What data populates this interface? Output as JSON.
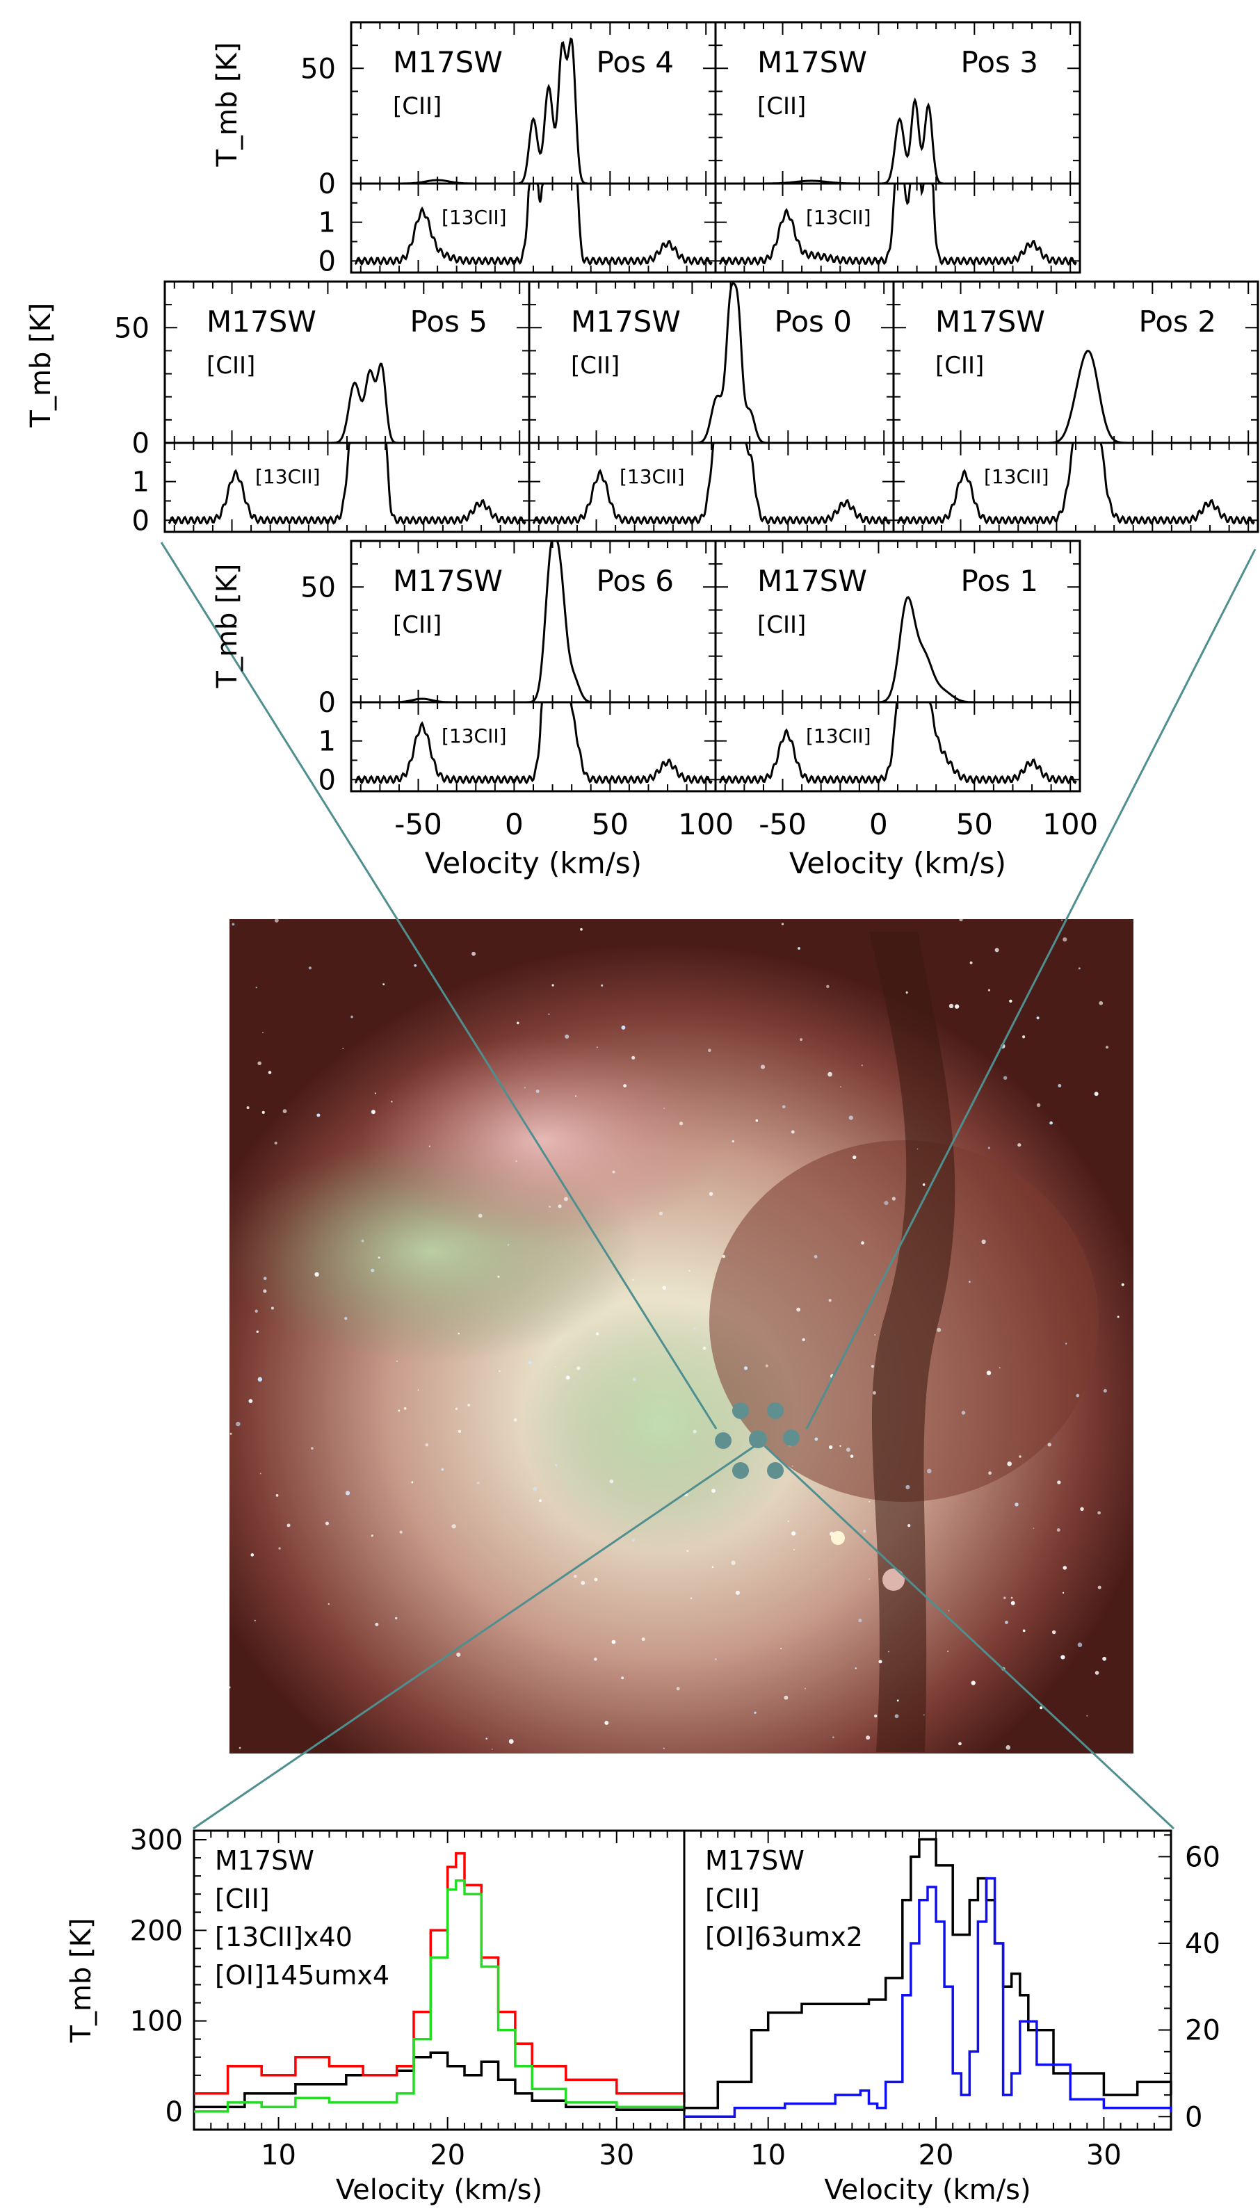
{
  "figure": {
    "colors": {
      "line": "#000000",
      "connector": "#4f8f8f",
      "marker": "#5f8f8f",
      "red": "#ff0000",
      "green": "#22dd22",
      "blue": "#1010ee"
    },
    "units": {
      "ylabel": "T_mb [K]",
      "xlabel": "Velocity (km/s)"
    },
    "inset_label": "[13CII]"
  },
  "chart_data": [
    {
      "type": "line",
      "id": "grid-row-1",
      "source": "M17SW",
      "line": "[CII]",
      "inset_label": "[13CII]",
      "positions": [
        "Pos 4",
        "Pos 3"
      ],
      "upper": {
        "ylim": [
          0,
          70
        ],
        "yticks": [
          0,
          50
        ]
      },
      "lower": {
        "ylim": [
          -0.3,
          2.0
        ],
        "yticks": [
          0,
          1
        ]
      },
      "xlim": [
        -85,
        105
      ],
      "xticks": [
        -50,
        0,
        50,
        100
      ],
      "ylabel": "T_mb [K]"
    },
    {
      "type": "line",
      "id": "grid-row-2",
      "source": "M17SW",
      "line": "[CII]",
      "inset_label": "[13CII]",
      "positions": [
        "Pos 5",
        "Pos 0",
        "Pos 2"
      ],
      "upper": {
        "ylim": [
          0,
          70
        ],
        "yticks": [
          0,
          50
        ]
      },
      "lower": {
        "ylim": [
          -0.3,
          2.0
        ],
        "yticks": [
          0,
          1
        ]
      },
      "xlim": [
        -85,
        105
      ],
      "xticks": [
        -50,
        0,
        50,
        100
      ],
      "ylabel": "T_mb [K]"
    },
    {
      "type": "line",
      "id": "grid-row-3",
      "source": "M17SW",
      "line": "[CII]",
      "inset_label": "[13CII]",
      "positions": [
        "Pos 6",
        "Pos 1"
      ],
      "upper": {
        "ylim": [
          0,
          70
        ],
        "yticks": [
          0,
          50
        ]
      },
      "lower": {
        "ylim": [
          -0.3,
          2.0
        ],
        "yticks": [
          0,
          1
        ]
      },
      "xlim": [
        -85,
        105
      ],
      "xticks": [
        -50,
        0,
        50,
        100
      ],
      "xticklabels": [
        "-50",
        "0",
        "50",
        "100"
      ],
      "xlabel": "Velocity (km/s)",
      "ylabel": "T_mb [K]"
    },
    {
      "type": "line",
      "id": "bottom-left",
      "title_lines": [
        "M17SW",
        "[CII]",
        "[13CII]x40",
        "[OI]145umx4"
      ],
      "xlim": [
        5,
        34
      ],
      "xticks": [
        10,
        20,
        30
      ],
      "ylim": [
        -20,
        310
      ],
      "yticks": [
        0,
        100,
        200,
        300
      ],
      "xlabel": "Velocity (km/s)",
      "ylabel": "T_mb [K]",
      "series": [
        {
          "name": "[CII]",
          "x": [
            5,
            8,
            11,
            14,
            17,
            18,
            19,
            20,
            21,
            22,
            23,
            24,
            25,
            27,
            30,
            34
          ],
          "y": [
            5,
            20,
            30,
            40,
            45,
            60,
            65,
            50,
            40,
            55,
            35,
            20,
            12,
            5,
            2,
            0
          ]
        },
        {
          "name": "[13CII]x40",
          "x": [
            5,
            7,
            9,
            11,
            13,
            15,
            17,
            18,
            19,
            20,
            20.5,
            21,
            22,
            23,
            24,
            25,
            27,
            30,
            34
          ],
          "y": [
            20,
            50,
            40,
            60,
            50,
            40,
            50,
            110,
            200,
            270,
            285,
            250,
            170,
            110,
            75,
            50,
            35,
            20,
            10
          ]
        },
        {
          "name": "[OI]145umx4",
          "x": [
            5,
            7,
            9,
            11,
            13,
            15,
            17,
            18,
            19,
            20,
            20.5,
            21,
            22,
            23,
            24,
            25,
            27,
            30,
            34
          ],
          "y": [
            0,
            10,
            5,
            15,
            10,
            10,
            20,
            80,
            170,
            245,
            255,
            240,
            160,
            90,
            50,
            25,
            10,
            5,
            0
          ]
        }
      ]
    },
    {
      "type": "line",
      "id": "bottom-right",
      "title_lines": [
        "M17SW",
        "[CII]",
        "[OI]63umx2"
      ],
      "xlim": [
        5,
        34
      ],
      "xticks": [
        10,
        20,
        30
      ],
      "ylim": [
        -3,
        66
      ],
      "yticks": [
        0,
        20,
        40,
        60
      ],
      "xlabel": "Velocity (km/s)",
      "ylabel": "T_mb [K]",
      "series": [
        {
          "name": "[CII]",
          "x": [
            5,
            7,
            9,
            10,
            12,
            14,
            16,
            17,
            18,
            18.5,
            19,
            20,
            21,
            22,
            22.5,
            23,
            23.5,
            24,
            24.5,
            25,
            25.5,
            27,
            30,
            32,
            34
          ],
          "y": [
            2,
            8,
            20,
            24,
            26,
            26,
            27,
            32,
            50,
            60,
            64,
            58,
            42,
            50,
            55,
            50,
            40,
            30,
            33,
            28,
            20,
            10,
            5,
            8,
            5
          ]
        },
        {
          "name": "[OI]63umx2",
          "x": [
            5,
            8,
            11,
            14,
            15.5,
            16,
            16.5,
            17,
            18,
            18.5,
            19,
            19.5,
            20,
            20.5,
            21,
            21.5,
            22,
            22.5,
            23,
            23.5,
            24,
            24.5,
            25,
            26,
            28,
            30,
            34
          ],
          "y": [
            0,
            2,
            3,
            5,
            6,
            3,
            2,
            8,
            28,
            40,
            50,
            53,
            45,
            30,
            10,
            5,
            15,
            45,
            55,
            40,
            5,
            10,
            22,
            12,
            4,
            2,
            1
          ]
        }
      ]
    }
  ]
}
